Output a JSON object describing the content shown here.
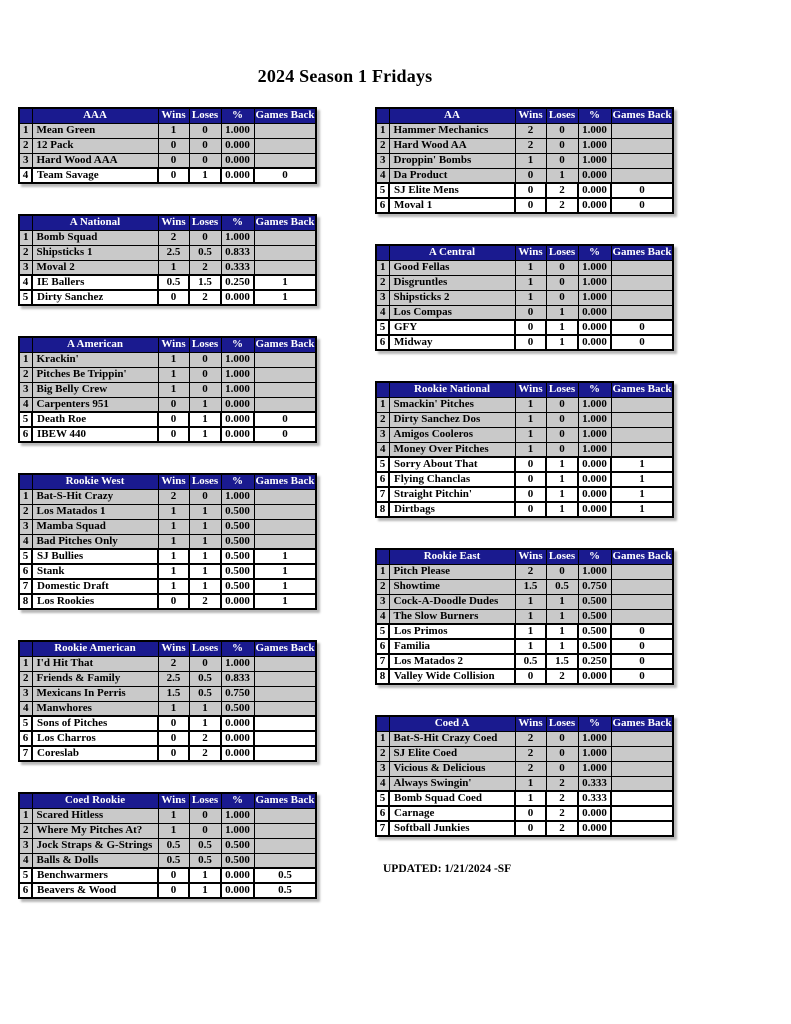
{
  "page": {
    "title": "2024 Season 1 Fridays",
    "updated": "UPDATED: 1/21/2024 -SF"
  },
  "column_headers": [
    "Wins",
    "Loses",
    "%",
    "Games Back"
  ],
  "tables_left": [
    {
      "division": "AAA",
      "rows": [
        {
          "rank": "1",
          "team": "Mean Green",
          "wins": "1",
          "loses": "0",
          "pct": "1.000",
          "gb": "",
          "highlight": false
        },
        {
          "rank": "2",
          "team": "12 Pack",
          "wins": "0",
          "loses": "0",
          "pct": "0.000",
          "gb": "",
          "highlight": false
        },
        {
          "rank": "3",
          "team": "Hard Wood AAA",
          "wins": "0",
          "loses": "0",
          "pct": "0.000",
          "gb": "",
          "highlight": false
        },
        {
          "rank": "4",
          "team": "Team Savage",
          "wins": "0",
          "loses": "1",
          "pct": "0.000",
          "gb": "0",
          "highlight": true
        }
      ]
    },
    {
      "division": "A National",
      "rows": [
        {
          "rank": "1",
          "team": "Bomb Squad",
          "wins": "2",
          "loses": "0",
          "pct": "1.000",
          "gb": "",
          "highlight": false
        },
        {
          "rank": "2",
          "team": "Shipsticks 1",
          "wins": "2.5",
          "loses": "0.5",
          "pct": "0.833",
          "gb": "",
          "highlight": false
        },
        {
          "rank": "3",
          "team": "Moval 2",
          "wins": "1",
          "loses": "2",
          "pct": "0.333",
          "gb": "",
          "highlight": false
        },
        {
          "rank": "4",
          "team": "IE Ballers",
          "wins": "0.5",
          "loses": "1.5",
          "pct": "0.250",
          "gb": "1",
          "highlight": true
        },
        {
          "rank": "5",
          "team": "Dirty Sanchez",
          "wins": "0",
          "loses": "2",
          "pct": "0.000",
          "gb": "1",
          "highlight": true
        }
      ]
    },
    {
      "division": "A American",
      "rows": [
        {
          "rank": "1",
          "team": "Krackin'",
          "wins": "1",
          "loses": "0",
          "pct": "1.000",
          "gb": "",
          "highlight": false
        },
        {
          "rank": "2",
          "team": "Pitches Be Trippin'",
          "wins": "1",
          "loses": "0",
          "pct": "1.000",
          "gb": "",
          "highlight": false
        },
        {
          "rank": "3",
          "team": "Big Belly Crew",
          "wins": "1",
          "loses": "0",
          "pct": "1.000",
          "gb": "",
          "highlight": false
        },
        {
          "rank": "4",
          "team": "Carpenters 951",
          "wins": "0",
          "loses": "1",
          "pct": "0.000",
          "gb": "",
          "highlight": false
        },
        {
          "rank": "5",
          "team": "Death Roe",
          "wins": "0",
          "loses": "1",
          "pct": "0.000",
          "gb": "0",
          "highlight": true
        },
        {
          "rank": "6",
          "team": "IBEW 440",
          "wins": "0",
          "loses": "1",
          "pct": "0.000",
          "gb": "0",
          "highlight": true
        }
      ]
    },
    {
      "division": "Rookie West",
      "rows": [
        {
          "rank": "1",
          "team": "Bat-S-Hit Crazy",
          "wins": "2",
          "loses": "0",
          "pct": "1.000",
          "gb": "",
          "highlight": false
        },
        {
          "rank": "2",
          "team": "Los Matados 1",
          "wins": "1",
          "loses": "1",
          "pct": "0.500",
          "gb": "",
          "highlight": false
        },
        {
          "rank": "3",
          "team": "Mamba Squad",
          "wins": "1",
          "loses": "1",
          "pct": "0.500",
          "gb": "",
          "highlight": false
        },
        {
          "rank": "4",
          "team": "Bad Pitches Only",
          "wins": "1",
          "loses": "1",
          "pct": "0.500",
          "gb": "",
          "highlight": false
        },
        {
          "rank": "5",
          "team": "SJ Bullies",
          "wins": "1",
          "loses": "1",
          "pct": "0.500",
          "gb": "1",
          "highlight": true
        },
        {
          "rank": "6",
          "team": "Stank",
          "wins": "1",
          "loses": "1",
          "pct": "0.500",
          "gb": "1",
          "highlight": true
        },
        {
          "rank": "7",
          "team": "Domestic Draft",
          "wins": "1",
          "loses": "1",
          "pct": "0.500",
          "gb": "1",
          "highlight": true
        },
        {
          "rank": "8",
          "team": "Los Rookies",
          "wins": "0",
          "loses": "2",
          "pct": "0.000",
          "gb": "1",
          "highlight": true
        }
      ]
    },
    {
      "division": "Rookie American",
      "rows": [
        {
          "rank": "1",
          "team": "I'd Hit That",
          "wins": "2",
          "loses": "0",
          "pct": "1.000",
          "gb": "",
          "highlight": false
        },
        {
          "rank": "2",
          "team": "Friends & Family",
          "wins": "2.5",
          "loses": "0.5",
          "pct": "0.833",
          "gb": "",
          "highlight": false
        },
        {
          "rank": "3",
          "team": "Mexicans In Perris",
          "wins": "1.5",
          "loses": "0.5",
          "pct": "0.750",
          "gb": "",
          "highlight": false
        },
        {
          "rank": "4",
          "team": "Manwhores",
          "wins": "1",
          "loses": "1",
          "pct": "0.500",
          "gb": "",
          "highlight": false
        },
        {
          "rank": "5",
          "team": "Sons of Pitches",
          "wins": "0",
          "loses": "1",
          "pct": "0.000",
          "gb": "",
          "highlight": true
        },
        {
          "rank": "6",
          "team": "Los Charros",
          "wins": "0",
          "loses": "2",
          "pct": "0.000",
          "gb": "",
          "highlight": true
        },
        {
          "rank": "7",
          "team": "Coreslab",
          "wins": "0",
          "loses": "2",
          "pct": "0.000",
          "gb": "",
          "highlight": true
        }
      ]
    },
    {
      "division": "Coed Rookie",
      "rows": [
        {
          "rank": "1",
          "team": "Scared Hitless",
          "wins": "1",
          "loses": "0",
          "pct": "1.000",
          "gb": "",
          "highlight": false
        },
        {
          "rank": "2",
          "team": "Where My Pitches At?",
          "wins": "1",
          "loses": "0",
          "pct": "1.000",
          "gb": "",
          "highlight": false
        },
        {
          "rank": "3",
          "team": "Jock Straps & G-Strings",
          "wins": "0.5",
          "loses": "0.5",
          "pct": "0.500",
          "gb": "",
          "highlight": false
        },
        {
          "rank": "4",
          "team": "Balls & Dolls",
          "wins": "0.5",
          "loses": "0.5",
          "pct": "0.500",
          "gb": "",
          "highlight": false
        },
        {
          "rank": "5",
          "team": "Benchwarmers",
          "wins": "0",
          "loses": "1",
          "pct": "0.000",
          "gb": "0.5",
          "highlight": true
        },
        {
          "rank": "6",
          "team": "Beavers & Wood",
          "wins": "0",
          "loses": "1",
          "pct": "0.000",
          "gb": "0.5",
          "highlight": true
        }
      ]
    }
  ],
  "tables_right": [
    {
      "division": "AA",
      "rows": [
        {
          "rank": "1",
          "team": "Hammer Mechanics",
          "wins": "2",
          "loses": "0",
          "pct": "1.000",
          "gb": "",
          "highlight": false
        },
        {
          "rank": "2",
          "team": "Hard Wood AA",
          "wins": "2",
          "loses": "0",
          "pct": "1.000",
          "gb": "",
          "highlight": false
        },
        {
          "rank": "3",
          "team": "Droppin' Bombs",
          "wins": "1",
          "loses": "0",
          "pct": "1.000",
          "gb": "",
          "highlight": false
        },
        {
          "rank": "4",
          "team": "Da Product",
          "wins": "0",
          "loses": "1",
          "pct": "0.000",
          "gb": "",
          "highlight": false
        },
        {
          "rank": "5",
          "team": "SJ Elite Mens",
          "wins": "0",
          "loses": "2",
          "pct": "0.000",
          "gb": "0",
          "highlight": true
        },
        {
          "rank": "6",
          "team": "Moval 1",
          "wins": "0",
          "loses": "2",
          "pct": "0.000",
          "gb": "0",
          "highlight": true
        }
      ]
    },
    {
      "division": "A Central",
      "rows": [
        {
          "rank": "1",
          "team": "Good Fellas",
          "wins": "1",
          "loses": "0",
          "pct": "1.000",
          "gb": "",
          "highlight": false
        },
        {
          "rank": "2",
          "team": "Disgruntles",
          "wins": "1",
          "loses": "0",
          "pct": "1.000",
          "gb": "",
          "highlight": false
        },
        {
          "rank": "3",
          "team": "Shipsticks 2",
          "wins": "1",
          "loses": "0",
          "pct": "1.000",
          "gb": "",
          "highlight": false
        },
        {
          "rank": "4",
          "team": "Los Compas",
          "wins": "0",
          "loses": "1",
          "pct": "0.000",
          "gb": "",
          "highlight": false
        },
        {
          "rank": "5",
          "team": "GFY",
          "wins": "0",
          "loses": "1",
          "pct": "0.000",
          "gb": "0",
          "highlight": true
        },
        {
          "rank": "6",
          "team": "Midway",
          "wins": "0",
          "loses": "1",
          "pct": "0.000",
          "gb": "0",
          "highlight": true
        }
      ]
    },
    {
      "division": "Rookie National",
      "rows": [
        {
          "rank": "1",
          "team": "Smackin' Pitches",
          "wins": "1",
          "loses": "0",
          "pct": "1.000",
          "gb": "",
          "highlight": false
        },
        {
          "rank": "2",
          "team": "Dirty Sanchez Dos",
          "wins": "1",
          "loses": "0",
          "pct": "1.000",
          "gb": "",
          "highlight": false
        },
        {
          "rank": "3",
          "team": "Amigos Cooleros",
          "wins": "1",
          "loses": "0",
          "pct": "1.000",
          "gb": "",
          "highlight": false
        },
        {
          "rank": "4",
          "team": "Money Over Pitches",
          "wins": "1",
          "loses": "0",
          "pct": "1.000",
          "gb": "",
          "highlight": false
        },
        {
          "rank": "5",
          "team": "Sorry About That",
          "wins": "0",
          "loses": "1",
          "pct": "0.000",
          "gb": "1",
          "highlight": true
        },
        {
          "rank": "6",
          "team": "Flying Chanclas",
          "wins": "0",
          "loses": "1",
          "pct": "0.000",
          "gb": "1",
          "highlight": true
        },
        {
          "rank": "7",
          "team": "Straight Pitchin'",
          "wins": "0",
          "loses": "1",
          "pct": "0.000",
          "gb": "1",
          "highlight": true
        },
        {
          "rank": "8",
          "team": "Dirtbags",
          "wins": "0",
          "loses": "1",
          "pct": "0.000",
          "gb": "1",
          "highlight": true
        }
      ]
    },
    {
      "division": "Rookie East",
      "rows": [
        {
          "rank": "1",
          "team": "Pitch Please",
          "wins": "2",
          "loses": "0",
          "pct": "1.000",
          "gb": "",
          "highlight": false
        },
        {
          "rank": "2",
          "team": "Showtime",
          "wins": "1.5",
          "loses": "0.5",
          "pct": "0.750",
          "gb": "",
          "highlight": false
        },
        {
          "rank": "3",
          "team": "Cock-A-Doodle Dudes",
          "wins": "1",
          "loses": "1",
          "pct": "0.500",
          "gb": "",
          "highlight": false
        },
        {
          "rank": "4",
          "team": "The Slow Burners",
          "wins": "1",
          "loses": "1",
          "pct": "0.500",
          "gb": "",
          "highlight": false
        },
        {
          "rank": "5",
          "team": "Los Primos",
          "wins": "1",
          "loses": "1",
          "pct": "0.500",
          "gb": "0",
          "highlight": true
        },
        {
          "rank": "6",
          "team": "Familia",
          "wins": "1",
          "loses": "1",
          "pct": "0.500",
          "gb": "0",
          "highlight": true
        },
        {
          "rank": "7",
          "team": "Los Matados 2",
          "wins": "0.5",
          "loses": "1.5",
          "pct": "0.250",
          "gb": "0",
          "highlight": true
        },
        {
          "rank": "8",
          "team": "Valley Wide Collision",
          "wins": "0",
          "loses": "2",
          "pct": "0.000",
          "gb": "0",
          "highlight": true
        }
      ]
    },
    {
      "division": "Coed A",
      "rows": [
        {
          "rank": "1",
          "team": "Bat-S-Hit Crazy Coed",
          "wins": "2",
          "loses": "0",
          "pct": "1.000",
          "gb": "",
          "highlight": false
        },
        {
          "rank": "2",
          "team": "SJ Elite Coed",
          "wins": "2",
          "loses": "0",
          "pct": "1.000",
          "gb": "",
          "highlight": false
        },
        {
          "rank": "3",
          "team": "Vicious & Delicious",
          "wins": "2",
          "loses": "0",
          "pct": "1.000",
          "gb": "",
          "highlight": false
        },
        {
          "rank": "4",
          "team": "Always Swingin'",
          "wins": "1",
          "loses": "2",
          "pct": "0.333",
          "gb": "",
          "highlight": false
        },
        {
          "rank": "5",
          "team": "Bomb Squad Coed",
          "wins": "1",
          "loses": "2",
          "pct": "0.333",
          "gb": "",
          "highlight": true
        },
        {
          "rank": "6",
          "team": "Carnage",
          "wins": "0",
          "loses": "2",
          "pct": "0.000",
          "gb": "",
          "highlight": true
        },
        {
          "rank": "7",
          "team": "Softball Junkies",
          "wins": "0",
          "loses": "2",
          "pct": "0.000",
          "gb": "",
          "highlight": true
        }
      ]
    }
  ],
  "colors": {
    "header_navy": "#1a1a8f",
    "row_gray": "#c9c9c9",
    "highlight_white": "#ffffff",
    "border_black": "#000000"
  }
}
